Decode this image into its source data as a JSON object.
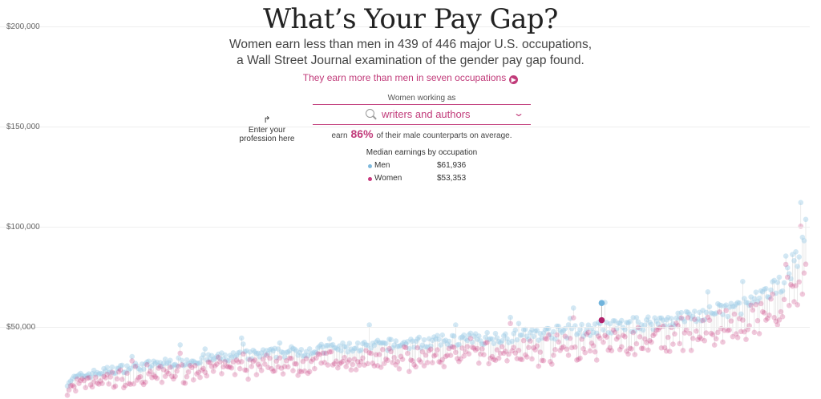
{
  "header": {
    "title": "What’s Your Pay Gap?",
    "subtitle_line1": "Women earn less than men in 439 of 446 major U.S. occupations,",
    "subtitle_line2": "a Wall Street Journal examination of the gender pay gap found.",
    "more_link": "They earn more than men in seven occupations"
  },
  "hint": {
    "line1": "Enter your",
    "line2": "profession here"
  },
  "selector": {
    "label": "Women working as",
    "value": "writers and authors",
    "earn_prefix": "earn",
    "earn_pct": "86%",
    "earn_suffix": "of their male counterparts on average."
  },
  "legend": {
    "title": "Median earnings by occupation",
    "men_label": "Men",
    "men_value": "$61,936",
    "women_label": "Women",
    "women_value": "$53,353"
  },
  "colors": {
    "men": "#9dcbe6",
    "women": "#c9397e",
    "accent": "#c13b7a"
  },
  "chart_data": {
    "type": "scatter",
    "y_ticks": [
      "$50,000",
      "$100,000",
      "$150,000",
      "$200,000"
    ],
    "y_tick_values": [
      50000,
      100000,
      150000,
      200000
    ],
    "ylim": [
      15000,
      210000
    ],
    "grid": true,
    "occupation_count": 446,
    "series": [
      {
        "name": "Men"
      },
      {
        "name": "Women"
      }
    ],
    "highlighted": {
      "occupation": "writers and authors",
      "men": 61936,
      "women": 53353
    }
  }
}
